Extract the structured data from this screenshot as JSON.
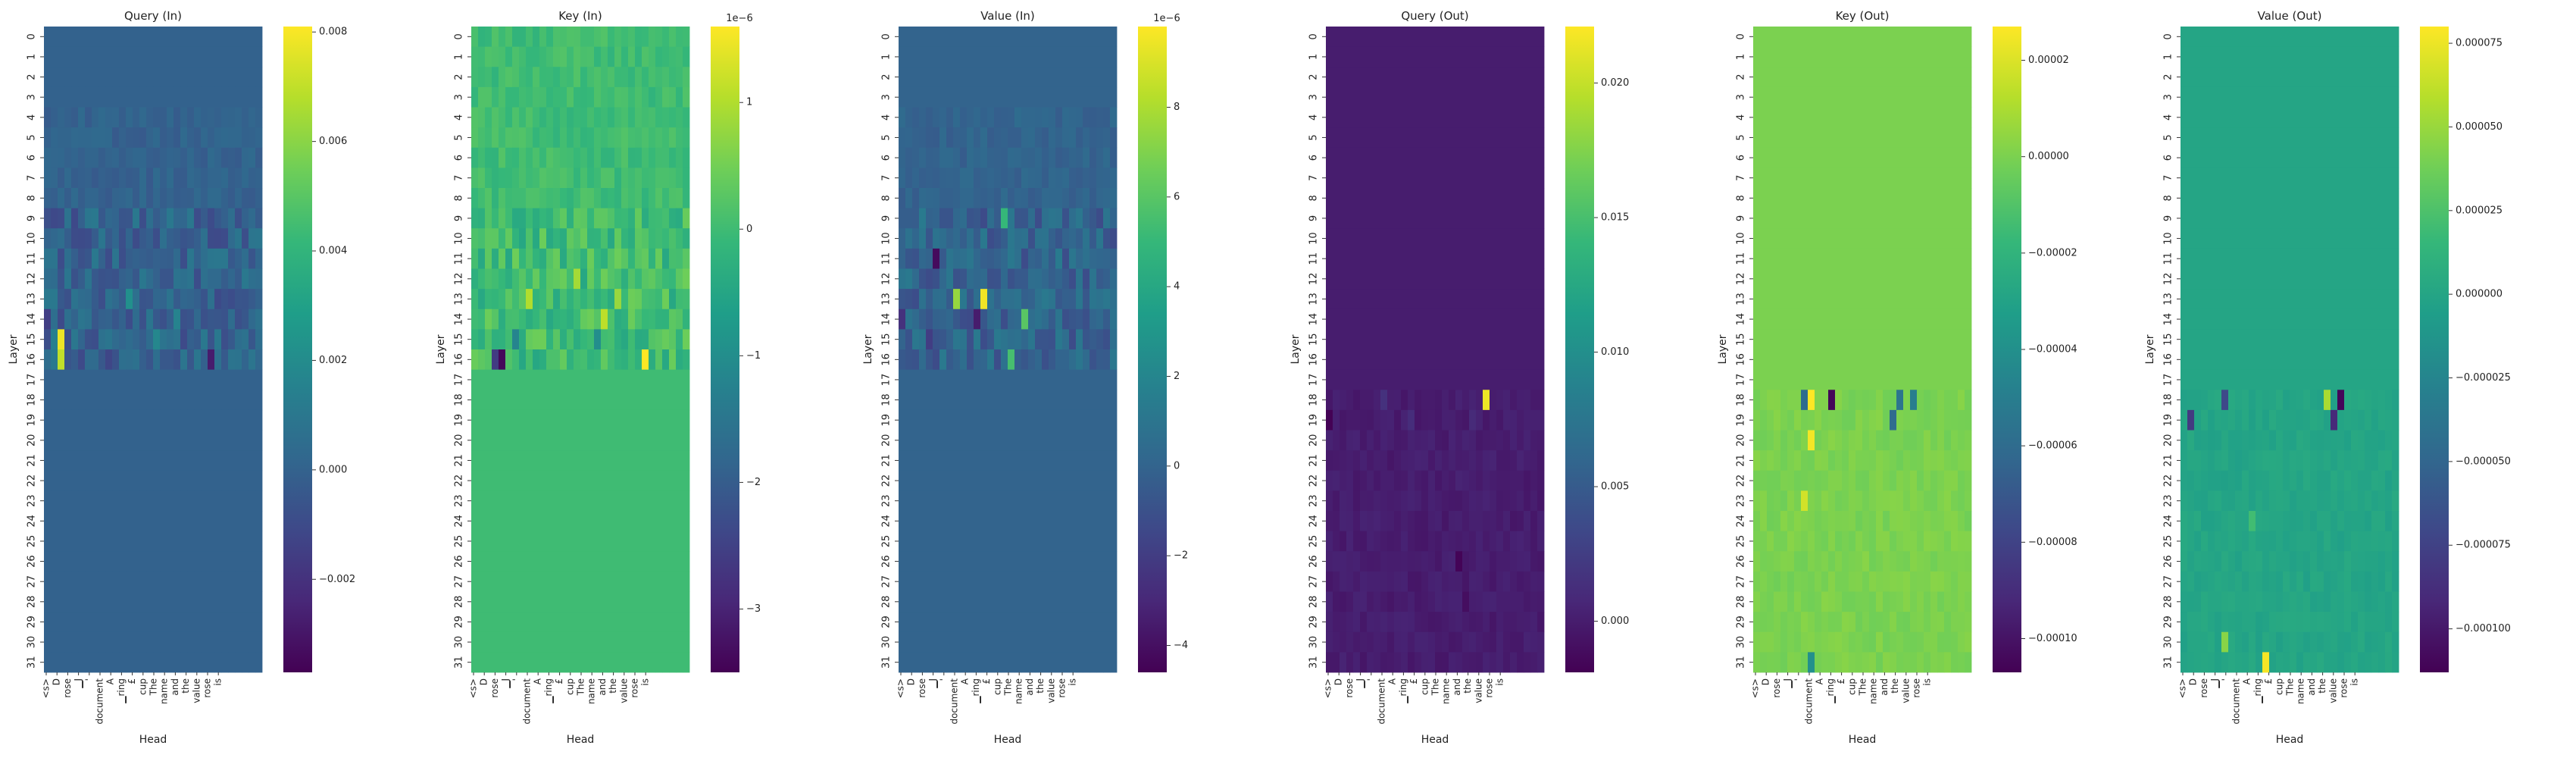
{
  "figure": {
    "colormap": "viridis",
    "colors": [
      "#440154",
      "#482878",
      "#3e4989",
      "#31688e",
      "#26828e",
      "#1f9e89",
      "#35b779",
      "#6ece58",
      "#b5de2b",
      "#fde725"
    ]
  },
  "chart_data": [
    {
      "type": "heatmap",
      "title": "Query (In)",
      "xlabel": "Head",
      "ylabel": "Layer",
      "x_tick_labels": [
        "<s>",
        "D",
        "rose",
        "▁J",
        "'",
        "document",
        "A",
        "▁ring",
        "£",
        "cup",
        "The",
        "name",
        "and",
        "the",
        "value",
        "rose",
        "is"
      ],
      "y_tick_labels": [
        "0",
        "1",
        "2",
        "3",
        "4",
        "5",
        "6",
        "7",
        "8",
        "9",
        "10",
        "11",
        "12",
        "13",
        "14",
        "15",
        "16",
        "17",
        "18",
        "19",
        "20",
        "21",
        "22",
        "23",
        "24",
        "25",
        "26",
        "27",
        "28",
        "29",
        "30",
        "31"
      ],
      "colorbar_ticks": [
        -0.002,
        0.0,
        0.002,
        0.004,
        0.006,
        0.008
      ],
      "colorbar_tick_labels": [
        "−0.002",
        "0.000",
        "0.002",
        "0.004",
        "0.006",
        "0.008"
      ],
      "colorbar_offset": "",
      "vmin": -0.0037,
      "vmax": 0.0081,
      "base": 0.0,
      "hotspots": [
        {
          "row": 15,
          "col": 2,
          "value": 0.0078
        },
        {
          "row": 16,
          "col": 2,
          "value": 0.007
        },
        {
          "row": 16,
          "col": 24,
          "value": -0.0028
        },
        {
          "row": 13,
          "col": 12,
          "value": 0.0022
        },
        {
          "row": 15,
          "col": 16,
          "value": 0.0018
        },
        {
          "row": 14,
          "col": 19,
          "value": 0.0016
        },
        {
          "row": 14,
          "col": 0,
          "value": -0.0015
        },
        {
          "row": 15,
          "col": 1,
          "value": 0.0014
        },
        {
          "row": 16,
          "col": 9,
          "value": -0.0012
        }
      ]
    },
    {
      "type": "heatmap",
      "title": "Key (In)",
      "xlabel": "Head",
      "ylabel": "Layer",
      "x_tick_labels": [
        "<s>",
        "D",
        "rose",
        "▁J",
        "'",
        "document",
        "A",
        "▁ring",
        "£",
        "cup",
        "The",
        "name",
        "and",
        "the",
        "value",
        "rose",
        "is"
      ],
      "y_tick_labels": [
        "0",
        "1",
        "2",
        "3",
        "4",
        "5",
        "6",
        "7",
        "8",
        "9",
        "10",
        "11",
        "12",
        "13",
        "14",
        "15",
        "16",
        "17",
        "18",
        "19",
        "20",
        "21",
        "22",
        "23",
        "24",
        "25",
        "26",
        "27",
        "28",
        "29",
        "30",
        "31"
      ],
      "colorbar_ticks": [
        -3,
        -2,
        -1,
        0,
        1
      ],
      "colorbar_tick_labels": [
        "−3",
        "−2",
        "−1",
        "0",
        "1"
      ],
      "colorbar_offset": "1e−6",
      "vmin": -3.5,
      "vmax": 1.6,
      "base": 0.0,
      "hotspots": [
        {
          "row": 16,
          "col": 4,
          "value": -3.4
        },
        {
          "row": 16,
          "col": 3,
          "value": -2.6
        },
        {
          "row": 16,
          "col": 25,
          "value": 1.6
        },
        {
          "row": 13,
          "col": 8,
          "value": 1.0
        },
        {
          "row": 12,
          "col": 15,
          "value": 0.9
        },
        {
          "row": 14,
          "col": 19,
          "value": 1.1
        },
        {
          "row": 13,
          "col": 21,
          "value": 0.8
        },
        {
          "row": 15,
          "col": 6,
          "value": -1.2
        },
        {
          "row": 15,
          "col": 18,
          "value": -1.0
        }
      ]
    },
    {
      "type": "heatmap",
      "title": "Value (In)",
      "xlabel": "Head",
      "ylabel": "Layer",
      "x_tick_labels": [
        "<s>",
        "D",
        "rose",
        "▁J",
        "'",
        "document",
        "A",
        "▁ring",
        "£",
        "cup",
        "The",
        "name",
        "and",
        "the",
        "value",
        "rose",
        "is"
      ],
      "y_tick_labels": [
        "0",
        "1",
        "2",
        "3",
        "4",
        "5",
        "6",
        "7",
        "8",
        "9",
        "10",
        "11",
        "12",
        "13",
        "14",
        "15",
        "16",
        "17",
        "18",
        "19",
        "20",
        "21",
        "22",
        "23",
        "24",
        "25",
        "26",
        "27",
        "28",
        "29",
        "30",
        "31"
      ],
      "colorbar_ticks": [
        -4,
        -2,
        0,
        2,
        4,
        6,
        8
      ],
      "colorbar_tick_labels": [
        "−4",
        "−2",
        "0",
        "2",
        "4",
        "6",
        "8"
      ],
      "colorbar_offset": "1e−6",
      "vmin": -4.6,
      "vmax": 9.8,
      "base": 0.0,
      "hotspots": [
        {
          "row": 13,
          "col": 12,
          "value": 9.5
        },
        {
          "row": 13,
          "col": 8,
          "value": 7.5
        },
        {
          "row": 14,
          "col": 18,
          "value": 6.0
        },
        {
          "row": 9,
          "col": 15,
          "value": 5.0
        },
        {
          "row": 16,
          "col": 16,
          "value": 5.5
        },
        {
          "row": 11,
          "col": 5,
          "value": -4.2
        },
        {
          "row": 14,
          "col": 11,
          "value": -3.5
        },
        {
          "row": 14,
          "col": 0,
          "value": -2.5
        },
        {
          "row": 15,
          "col": 4,
          "value": -2.0
        }
      ]
    },
    {
      "type": "heatmap",
      "title": "Query (Out)",
      "xlabel": "Head",
      "ylabel": "Layer",
      "x_tick_labels": [
        "<s>",
        "D",
        "rose",
        "▁J",
        "'",
        "document",
        "A",
        "▁ring",
        "£",
        "cup",
        "The",
        "name",
        "and",
        "the",
        "value",
        "rose",
        "is"
      ],
      "y_tick_labels": [
        "0",
        "1",
        "2",
        "3",
        "4",
        "5",
        "6",
        "7",
        "8",
        "9",
        "10",
        "11",
        "12",
        "13",
        "14",
        "15",
        "16",
        "17",
        "18",
        "19",
        "20",
        "21",
        "22",
        "23",
        "24",
        "25",
        "26",
        "27",
        "28",
        "29",
        "30",
        "31"
      ],
      "colorbar_ticks": [
        0.0,
        0.005,
        0.01,
        0.015,
        0.02
      ],
      "colorbar_tick_labels": [
        "0.000",
        "0.005",
        "0.010",
        "0.015",
        "0.020"
      ],
      "colorbar_offset": "",
      "vmin": -0.0019,
      "vmax": 0.0221,
      "base": 0.0,
      "hotspots": [
        {
          "row": 18,
          "col": 23,
          "value": 0.0215
        },
        {
          "row": 18,
          "col": 8,
          "value": 0.0015
        },
        {
          "row": 19,
          "col": 12,
          "value": 0.0012
        },
        {
          "row": 19,
          "col": 21,
          "value": 0.001
        },
        {
          "row": 19,
          "col": 0,
          "value": -0.0018
        },
        {
          "row": 26,
          "col": 19,
          "value": -0.0017
        },
        {
          "row": 28,
          "col": 20,
          "value": -0.001
        }
      ]
    },
    {
      "type": "heatmap",
      "title": "Key (Out)",
      "xlabel": "Head",
      "ylabel": "Layer",
      "x_tick_labels": [
        "<s>",
        "D",
        "rose",
        "▁J",
        "'",
        "document",
        "A",
        "▁ring",
        "£",
        "cup",
        "The",
        "name",
        "and",
        "the",
        "value",
        "rose",
        "is"
      ],
      "y_tick_labels": [
        "0",
        "1",
        "2",
        "3",
        "4",
        "5",
        "6",
        "7",
        "8",
        "9",
        "10",
        "11",
        "12",
        "13",
        "14",
        "15",
        "16",
        "17",
        "18",
        "19",
        "20",
        "21",
        "22",
        "23",
        "24",
        "25",
        "26",
        "27",
        "28",
        "29",
        "30",
        "31"
      ],
      "colorbar_ticks": [
        -0.0001,
        -8e-05,
        -6e-05,
        -4e-05,
        -2e-05,
        0.0,
        2e-05
      ],
      "colorbar_tick_labels": [
        "−0.00010",
        "−0.00008",
        "−0.00006",
        "−0.00004",
        "−0.00002",
        "0.00000",
        "0.00002"
      ],
      "colorbar_offset": "",
      "vmin": -0.000107,
      "vmax": 2.7e-05,
      "base": 0.0,
      "hotspots": [
        {
          "row": 18,
          "col": 8,
          "value": 2.7e-05
        },
        {
          "row": 18,
          "col": 11,
          "value": -0.000105
        },
        {
          "row": 18,
          "col": 7,
          "value": -6e-05
        },
        {
          "row": 18,
          "col": 21,
          "value": -5.5e-05
        },
        {
          "row": 18,
          "col": 23,
          "value": -5e-05
        },
        {
          "row": 19,
          "col": 20,
          "value": -6e-05
        },
        {
          "row": 20,
          "col": 8,
          "value": 2.5e-05
        },
        {
          "row": 23,
          "col": 7,
          "value": 1.8e-05
        },
        {
          "row": 31,
          "col": 8,
          "value": -4e-05
        }
      ]
    },
    {
      "type": "heatmap",
      "title": "Value (Out)",
      "xlabel": "Head",
      "ylabel": "Layer",
      "x_tick_labels": [
        "<s>",
        "D",
        "rose",
        "▁J",
        "'",
        "document",
        "A",
        "▁ring",
        "£",
        "cup",
        "The",
        "name",
        "and",
        "the",
        "value",
        "rose",
        "is"
      ],
      "y_tick_labels": [
        "0",
        "1",
        "2",
        "3",
        "4",
        "5",
        "6",
        "7",
        "8",
        "9",
        "10",
        "11",
        "12",
        "13",
        "14",
        "15",
        "16",
        "17",
        "18",
        "19",
        "20",
        "21",
        "22",
        "23",
        "24",
        "25",
        "26",
        "27",
        "28",
        "29",
        "30",
        "31"
      ],
      "colorbar_ticks": [
        -0.0001,
        -7.5e-05,
        -5e-05,
        -2.5e-05,
        0.0,
        2.5e-05,
        5e-05,
        7.5e-05
      ],
      "colorbar_tick_labels": [
        "−0.000100",
        "−0.000075",
        "−0.000050",
        "−0.000025",
        "0.000000",
        "0.000025",
        "0.000050",
        "0.000075"
      ],
      "colorbar_offset": "",
      "vmin": -0.000113,
      "vmax": 8e-05,
      "base": 0.0,
      "hotspots": [
        {
          "row": 31,
          "col": 12,
          "value": 7.8e-05
        },
        {
          "row": 18,
          "col": 21,
          "value": 5.5e-05
        },
        {
          "row": 18,
          "col": 23,
          "value": -0.00011
        },
        {
          "row": 19,
          "col": 22,
          "value": -9e-05
        },
        {
          "row": 18,
          "col": 6,
          "value": -7e-05
        },
        {
          "row": 19,
          "col": 1,
          "value": -8e-05
        },
        {
          "row": 30,
          "col": 6,
          "value": 4.5e-05
        },
        {
          "row": 24,
          "col": 10,
          "value": 2e-05
        }
      ]
    }
  ]
}
